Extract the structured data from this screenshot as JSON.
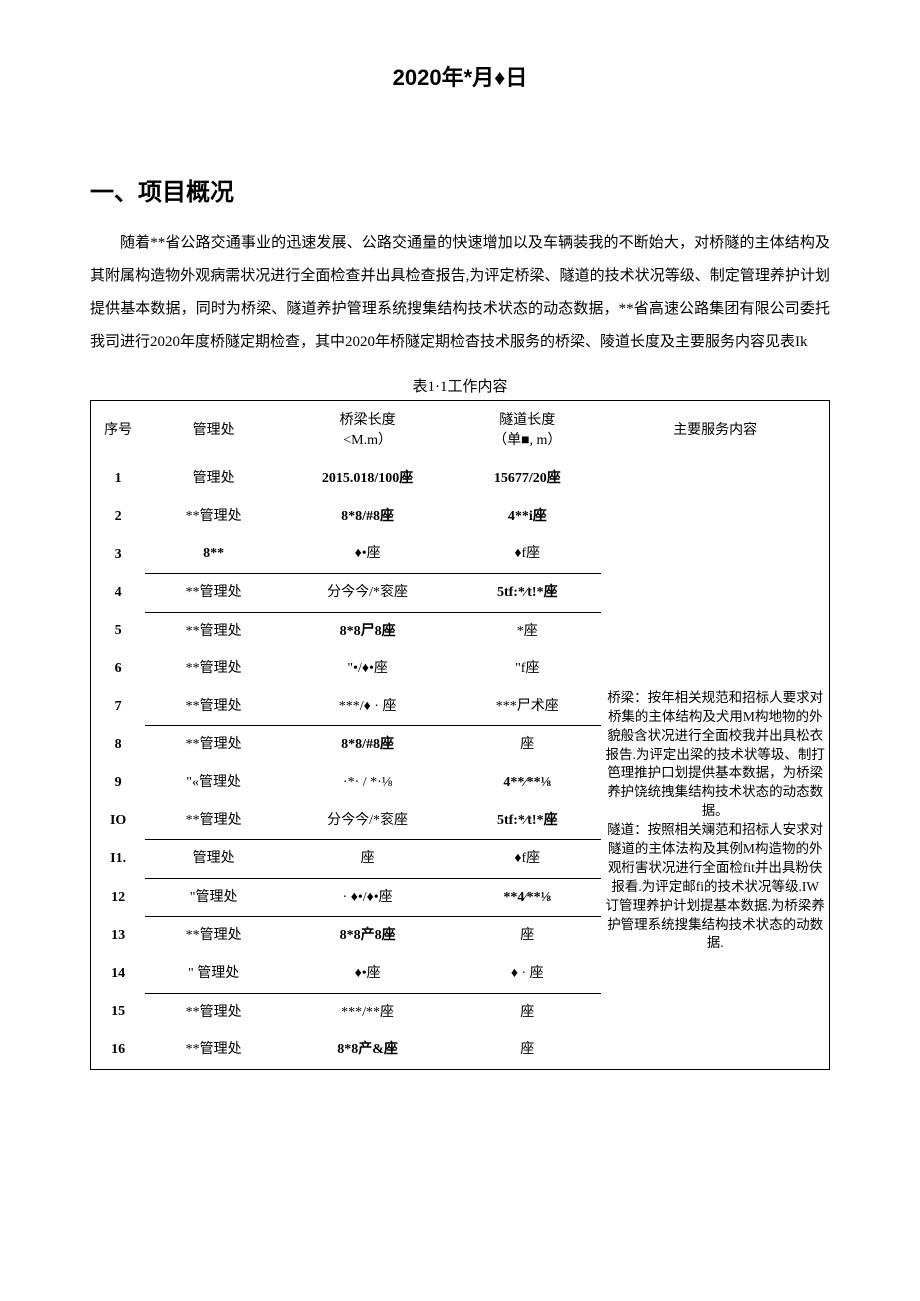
{
  "date_title": "2020年*月♦日",
  "section_heading": "一、项目概况",
  "paragraph": "随着**省公路交通事业的迅速发展、公路交通量的快速增加以及车辆装我的不断始大，对桥隧的主体结构及其附属构造物外观病需状况进行全面检查并出具检查报告,为评定桥梁、隧道的技术状况等级、制定管理养护计划提供基本数据，同时为桥梁、隧道养护管理系统搜集结构技术状态的动态数据，**省高速公路集团有限公司委托我司进行2020年度桥隧定期检查，其中2020年桥隧定期检杳技术服务的桥梁、陵道长度及主要服务内容见表Ik",
  "table_caption": "表1·1工作内容",
  "table": {
    "columns": {
      "seq": "序号",
      "dept": "管理处",
      "bridge": "桥梁长度",
      "bridge_sub": "<M.m）",
      "tunnel": "隧道长度",
      "tunnel_sub": "（单■, m）",
      "service": "主要服务内容"
    },
    "rows": [
      {
        "seq": "1",
        "dept": "管理处",
        "bridge": "2015.018/100座",
        "tunnel": "15677/20座"
      },
      {
        "seq": "2",
        "dept": "**管理处",
        "bridge": "8*8/#8座",
        "tunnel": "4**i座"
      },
      {
        "seq": "3",
        "dept": "8**",
        "bridge": "♦•座",
        "tunnel": "♦f座"
      },
      {
        "seq": "4",
        "dept": "**管理处",
        "bridge": "分今今/*衮座",
        "tunnel": "5tf:*⁄t!*座"
      },
      {
        "seq": "5",
        "dept": "**管理处",
        "bridge": "8*8尸8座",
        "tunnel": "*座"
      },
      {
        "seq": "6",
        "dept": "**管理处",
        "bridge": "\"•/♦•座",
        "tunnel": "\"f座"
      },
      {
        "seq": "7",
        "dept": "**管理处",
        "bridge": "***/♦ · 座",
        "tunnel": "***尸术座"
      },
      {
        "seq": "8",
        "dept": "**管理处",
        "bridge": "8*8/#8座",
        "tunnel": "座"
      },
      {
        "seq": "9",
        "dept": "\"«管理处",
        "bridge": "·*· / *·⅛",
        "tunnel": "4**⁄**⅛"
      },
      {
        "seq": "IO",
        "dept": "**管理处",
        "bridge": "分今今/*衮座",
        "tunnel": "5tf:*⁄t!*座"
      },
      {
        "seq": "I1.",
        "dept": "管理处",
        "bridge": "座",
        "tunnel": "♦f座"
      },
      {
        "seq": "12",
        "dept": "\"管理处",
        "bridge": "· ♦•/♦•座",
        "tunnel": "**4⁄**⅛"
      },
      {
        "seq": "13",
        "dept": "**管理处",
        "bridge": "8*8产8座",
        "tunnel": "座"
      },
      {
        "seq": "14",
        "dept": "\" 管理处",
        "bridge": "♦•座",
        "tunnel": "♦ · 座"
      },
      {
        "seq": "15",
        "dept": "**管理处",
        "bridge": "***/**座",
        "tunnel": "座"
      },
      {
        "seq": "16",
        "dept": "**管理处",
        "bridge": "8*8产&座",
        "tunnel": "座"
      }
    ],
    "service_text": "桥梁：按年相关规范和招标人要求对桥集的主体结构及犬用M构地物的外貌般含状况进行全面校我并出具松衣报告.为评定出梁的技术状等圾、制打笆理推护口划提供基本数据，为桥梁养护饶统拽集结构技术状态的动态数据。\n隧道：按照相关斓范和招标人安求对隧道的主体法构及其例M构造物的外观桁害状况进行全面检fit并出具粉伕报看.为评定邮fi的技术状况等级.IW订管理养护计划提基本数据.为桥梁养护管理系统搜集结构技术状态的动数据."
  }
}
